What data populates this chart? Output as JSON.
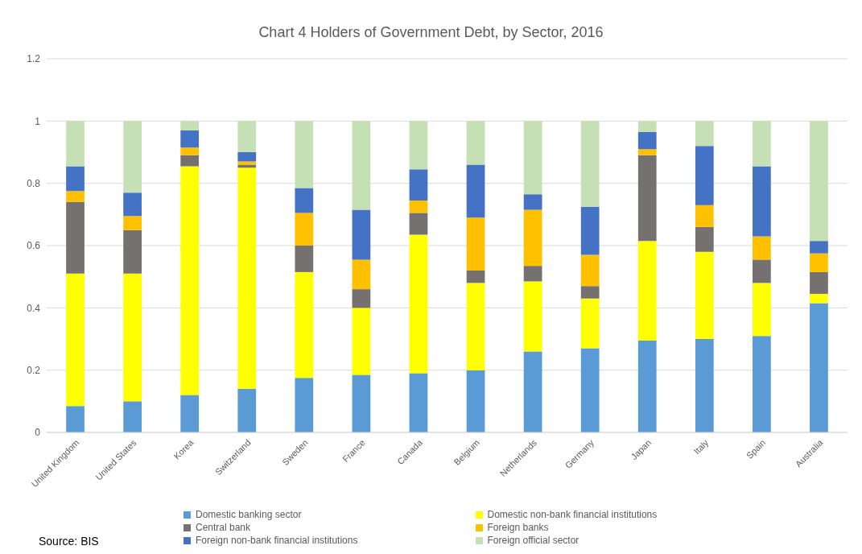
{
  "chart_data": {
    "type": "bar",
    "title": "Chart 4 Holders of Government Debt, by Sector, 2016",
    "stacked": true,
    "categories": [
      "United Kingdom",
      "United States",
      "Korea",
      "Switzerland",
      "Sweden",
      "France",
      "Canada",
      "Belgium",
      "Netherlands",
      "Germany",
      "Japan",
      "Italy",
      "Spain",
      "Australia"
    ],
    "series": [
      {
        "name": "Domestic banking sector",
        "color": "#5b9bd5",
        "values": [
          0.085,
          0.1,
          0.12,
          0.14,
          0.175,
          0.185,
          0.19,
          0.2,
          0.26,
          0.27,
          0.295,
          0.3,
          0.31,
          0.415
        ]
      },
      {
        "name": "Domestic non-bank financial institutions",
        "color": "#ffff00",
        "values": [
          0.425,
          0.41,
          0.735,
          0.71,
          0.34,
          0.215,
          0.445,
          0.28,
          0.225,
          0.16,
          0.32,
          0.28,
          0.17,
          0.03
        ]
      },
      {
        "name": "Central bank",
        "color": "#767171",
        "values": [
          0.23,
          0.14,
          0.035,
          0.01,
          0.085,
          0.06,
          0.07,
          0.04,
          0.05,
          0.04,
          0.275,
          0.08,
          0.075,
          0.07
        ]
      },
      {
        "name": "Foreign banks",
        "color": "#ffc000",
        "values": [
          0.035,
          0.045,
          0.025,
          0.01,
          0.105,
          0.095,
          0.04,
          0.17,
          0.18,
          0.1,
          0.02,
          0.07,
          0.075,
          0.06
        ]
      },
      {
        "name": "Foreign non-bank financial institutions",
        "color": "#4472c4",
        "values": [
          0.08,
          0.075,
          0.055,
          0.03,
          0.08,
          0.16,
          0.1,
          0.17,
          0.05,
          0.155,
          0.055,
          0.19,
          0.225,
          0.04
        ]
      },
      {
        "name": "Foreign official sector",
        "color": "#c5e0b4",
        "values": [
          0.145,
          0.23,
          0.03,
          0.1,
          0.215,
          0.285,
          0.155,
          0.14,
          0.235,
          0.275,
          0.035,
          0.08,
          0.145,
          0.385
        ]
      }
    ],
    "ylim": [
      0,
      1.2
    ],
    "yticks": [
      0,
      0.2,
      0.4,
      0.6,
      0.8,
      1,
      1.2
    ],
    "grid": "y",
    "legend": "bottom",
    "annotations": [
      "Source: BIS"
    ]
  }
}
